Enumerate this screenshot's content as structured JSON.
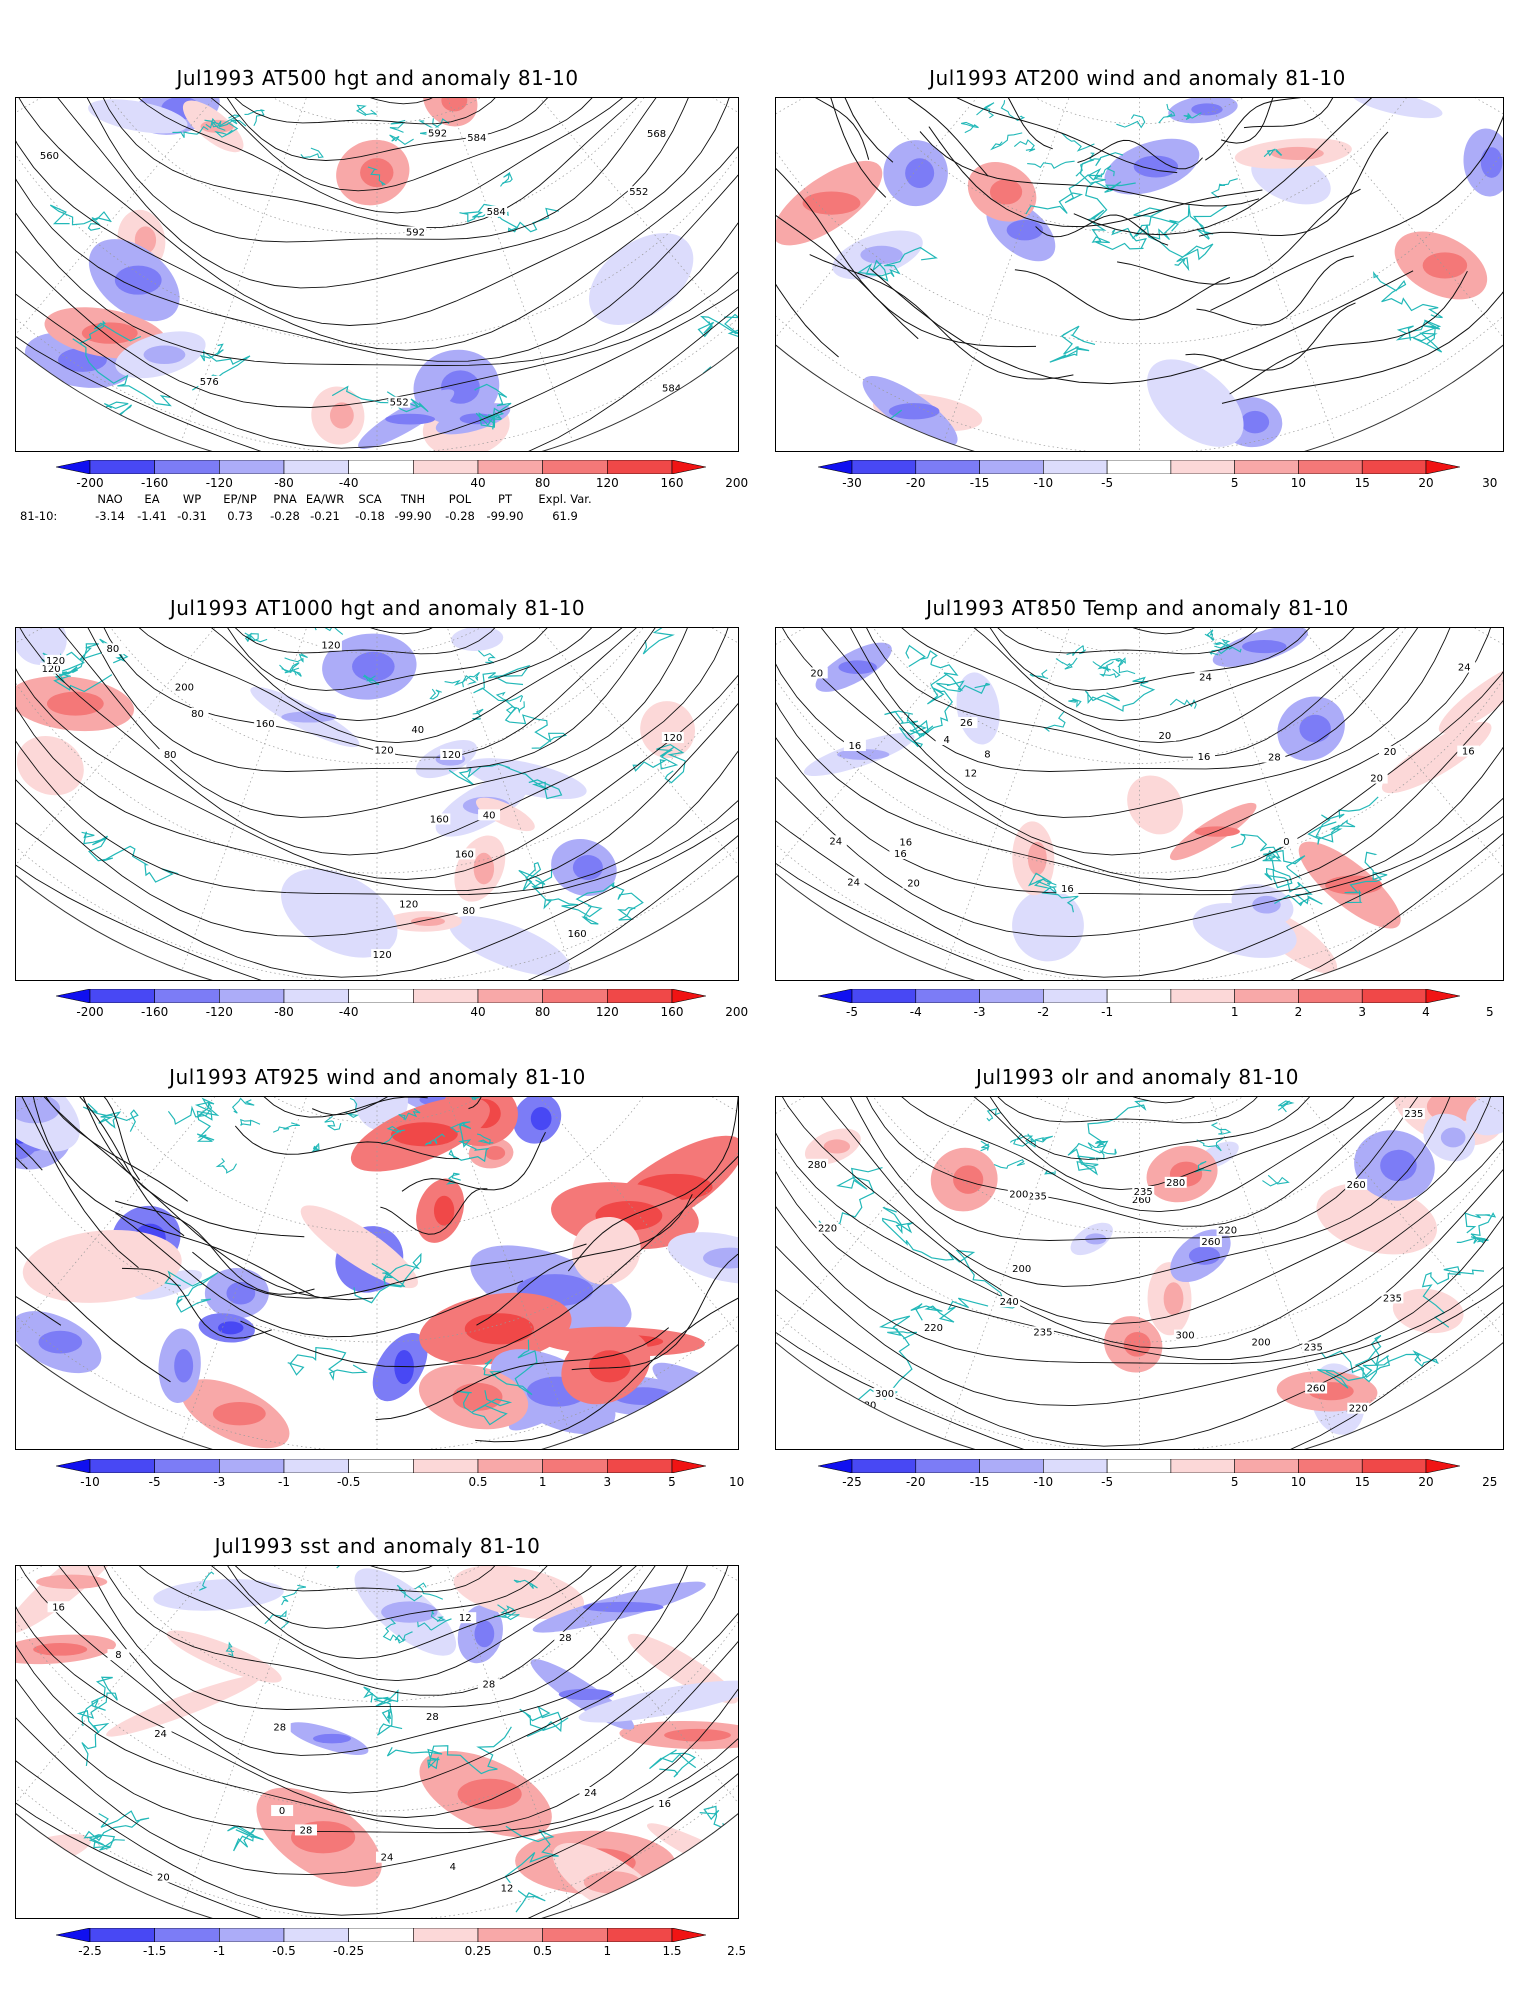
{
  "panels": [
    {
      "id": "p1",
      "title": "Jul1993 AT500 hgt and anomaly 81-10",
      "style": "contour",
      "contour_labels": [
        "592",
        "584",
        "552",
        "552",
        "560",
        "568",
        "576",
        "584",
        "592",
        "584"
      ],
      "colorbar": {
        "ticks": [
          "-200",
          "-160",
          "-120",
          "-80",
          "-40",
          "40",
          "80",
          "120",
          "160",
          "200"
        ],
        "colors": [
          "#1010f0",
          "#4848f4",
          "#7c7cf6",
          "#acacf8",
          "#dcdcfc",
          "#ffffff",
          "#fcd8d8",
          "#f8a8a8",
          "#f47878",
          "#f04848",
          "#f01414"
        ]
      }
    },
    {
      "id": "p2",
      "title": "Jul1993 AT200 wind and anomaly 81-10",
      "style": "stream",
      "contour_labels": [],
      "colorbar": {
        "ticks": [
          "-30",
          "-20",
          "-15",
          "-10",
          "-5",
          "5",
          "10",
          "15",
          "20",
          "30"
        ],
        "colors": [
          "#1010f0",
          "#4848f4",
          "#7c7cf6",
          "#acacf8",
          "#dcdcfc",
          "#ffffff",
          "#fcd8d8",
          "#f8a8a8",
          "#f47878",
          "#f04848",
          "#f01414"
        ]
      }
    },
    {
      "id": "p3",
      "title": "Jul1993 AT1000 hgt and anomaly 81-10",
      "style": "contour",
      "contour_labels": [
        "80",
        "120",
        "160",
        "120",
        "160",
        "120",
        "120",
        "160",
        "200",
        "120",
        "80",
        "40",
        "120",
        "80",
        "160",
        "80",
        "120",
        "80",
        "120",
        "120",
        "40"
      ],
      "colorbar": {
        "ticks": [
          "-200",
          "-160",
          "-120",
          "-80",
          "-40",
          "40",
          "80",
          "120",
          "160",
          "200"
        ],
        "colors": [
          "#1010f0",
          "#4848f4",
          "#7c7cf6",
          "#acacf8",
          "#dcdcfc",
          "#ffffff",
          "#fcd8d8",
          "#f8a8a8",
          "#f47878",
          "#f04848",
          "#f01414"
        ]
      }
    },
    {
      "id": "p4",
      "title": "Jul1993 AT850 Temp and anomaly 81-10",
      "style": "contour",
      "contour_labels": [
        "24",
        "20",
        "28",
        "24",
        "20",
        "0",
        "20",
        "4",
        "8",
        "12",
        "16",
        "20",
        "24",
        "26",
        "16",
        "16",
        "16",
        "24",
        "20",
        "16",
        "16"
      ],
      "colorbar": {
        "ticks": [
          "-5",
          "-4",
          "-3",
          "-2",
          "-1",
          "1",
          "2",
          "3",
          "4",
          "5"
        ],
        "colors": [
          "#1010f0",
          "#4848f4",
          "#7c7cf6",
          "#acacf8",
          "#dcdcfc",
          "#ffffff",
          "#fcd8d8",
          "#f8a8a8",
          "#f47878",
          "#f04848",
          "#f01414"
        ]
      }
    },
    {
      "id": "p5",
      "title": "Jul1993 AT925 wind and anomaly 81-10",
      "style": "stream",
      "contour_labels": [],
      "colorbar": {
        "ticks": [
          "-10",
          "-5",
          "-3",
          "-1",
          "-0.5",
          "0.5",
          "1",
          "3",
          "5",
          "10"
        ],
        "colors": [
          "#1010f0",
          "#4848f4",
          "#7c7cf6",
          "#acacf8",
          "#dcdcfc",
          "#ffffff",
          "#fcd8d8",
          "#f8a8a8",
          "#f47878",
          "#f04848",
          "#f01414"
        ]
      }
    },
    {
      "id": "p6",
      "title": "Jul1993 olr and anomaly 81-10",
      "style": "contour",
      "contour_labels": [
        "235",
        "235",
        "200",
        "220",
        "260",
        "235",
        "300",
        "280",
        "220",
        "240",
        "260",
        "280",
        "235",
        "300",
        "260",
        "220",
        "235",
        "280",
        "220",
        "200",
        "260",
        "235",
        "200"
      ],
      "colorbar": {
        "ticks": [
          "-25",
          "-20",
          "-15",
          "-10",
          "-5",
          "5",
          "10",
          "15",
          "20",
          "25"
        ],
        "colors": [
          "#1010f0",
          "#4848f4",
          "#7c7cf6",
          "#acacf8",
          "#dcdcfc",
          "#ffffff",
          "#fcd8d8",
          "#f8a8a8",
          "#f47878",
          "#f04848",
          "#f01414"
        ]
      }
    },
    {
      "id": "p7",
      "title": "Jul1993 sst and anomaly 81-10",
      "style": "contour",
      "contour_labels": [
        "28",
        "28",
        "0",
        "4",
        "8",
        "12",
        "16",
        "20",
        "24",
        "28",
        "24",
        "28",
        "28",
        "24",
        "12",
        "16"
      ],
      "colorbar": {
        "ticks": [
          "-2.5",
          "-1.5",
          "-1",
          "-0.5",
          "-0.25",
          "0.25",
          "0.5",
          "1",
          "1.5",
          "2.5"
        ],
        "colors": [
          "#1010f0",
          "#4848f4",
          "#7c7cf6",
          "#acacf8",
          "#dcdcfc",
          "#ffffff",
          "#fcd8d8",
          "#f8a8a8",
          "#f47878",
          "#f04848",
          "#f01414"
        ]
      }
    }
  ],
  "teleconnections": {
    "headers": [
      "NAO",
      "EA",
      "WP",
      "EP/NP",
      "PNA",
      "EA/WR",
      "SCA",
      "TNH",
      "POL",
      "PT",
      "Expl. Var."
    ],
    "row_label": "81-10:",
    "values": [
      "-3.14",
      "-1.41",
      "-0.31",
      "0.73",
      "-0.28",
      "-0.21",
      "-0.18",
      "-99.90",
      "-0.28",
      "-99.90",
      "61.9"
    ]
  }
}
